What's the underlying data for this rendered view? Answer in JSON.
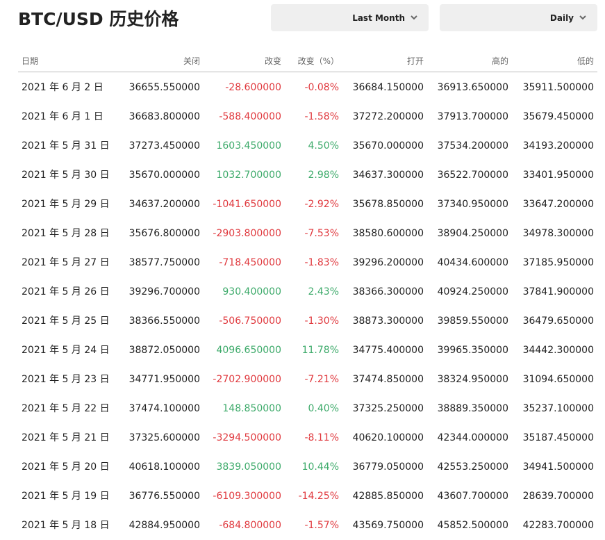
{
  "header": {
    "title": "BTC/USD 历史价格",
    "range_select": "Last Month",
    "interval_select": "Daily"
  },
  "table": {
    "columns": [
      "日期",
      "关闭",
      "改变",
      "改变（%）",
      "打开",
      "高的",
      "低的"
    ],
    "rows": [
      [
        "2021 年 6 月 2 日",
        "36655.550000",
        "-28.600000",
        "-0.08%",
        "36684.150000",
        "36913.650000",
        "35911.500000"
      ],
      [
        "2021 年 6 月 1 日",
        "36683.800000",
        "-588.400000",
        "-1.58%",
        "37272.200000",
        "37913.700000",
        "35679.450000"
      ],
      [
        "2021 年 5 月 31 日",
        "37273.450000",
        "1603.450000",
        "4.50%",
        "35670.000000",
        "37534.200000",
        "34193.200000"
      ],
      [
        "2021 年 5 月 30 日",
        "35670.000000",
        "1032.700000",
        "2.98%",
        "34637.300000",
        "36522.700000",
        "33401.950000"
      ],
      [
        "2021 年 5 月 29 日",
        "34637.200000",
        "-1041.650000",
        "-2.92%",
        "35678.850000",
        "37340.950000",
        "33647.200000"
      ],
      [
        "2021 年 5 月 28 日",
        "35676.800000",
        "-2903.800000",
        "-7.53%",
        "38580.600000",
        "38904.250000",
        "34978.300000"
      ],
      [
        "2021 年 5 月 27 日",
        "38577.750000",
        "-718.450000",
        "-1.83%",
        "39296.200000",
        "40434.600000",
        "37185.950000"
      ],
      [
        "2021 年 5 月 26 日",
        "39296.700000",
        "930.400000",
        "2.43%",
        "38366.300000",
        "40924.250000",
        "37841.900000"
      ],
      [
        "2021 年 5 月 25 日",
        "38366.550000",
        "-506.750000",
        "-1.30%",
        "38873.300000",
        "39859.550000",
        "36479.650000"
      ],
      [
        "2021 年 5 月 24 日",
        "38872.050000",
        "4096.650000",
        "11.78%",
        "34775.400000",
        "39965.350000",
        "34442.300000"
      ],
      [
        "2021 年 5 月 23 日",
        "34771.950000",
        "-2702.900000",
        "-7.21%",
        "37474.850000",
        "38324.950000",
        "31094.650000"
      ],
      [
        "2021 年 5 月 22 日",
        "37474.100000",
        "148.850000",
        "0.40%",
        "37325.250000",
        "38889.350000",
        "35237.100000"
      ],
      [
        "2021 年 5 月 21 日",
        "37325.600000",
        "-3294.500000",
        "-8.11%",
        "40620.100000",
        "42344.000000",
        "35187.450000"
      ],
      [
        "2021 年 5 月 20 日",
        "40618.100000",
        "3839.050000",
        "10.44%",
        "36779.050000",
        "42553.250000",
        "34941.500000"
      ],
      [
        "2021 年 5 月 19 日",
        "36776.550000",
        "-6109.300000",
        "-14.25%",
        "42885.850000",
        "43607.700000",
        "28639.700000"
      ],
      [
        "2021 年 5 月 18 日",
        "42884.950000",
        "-684.800000",
        "-1.57%",
        "43569.750000",
        "45852.500000",
        "42283.700000"
      ]
    ]
  }
}
